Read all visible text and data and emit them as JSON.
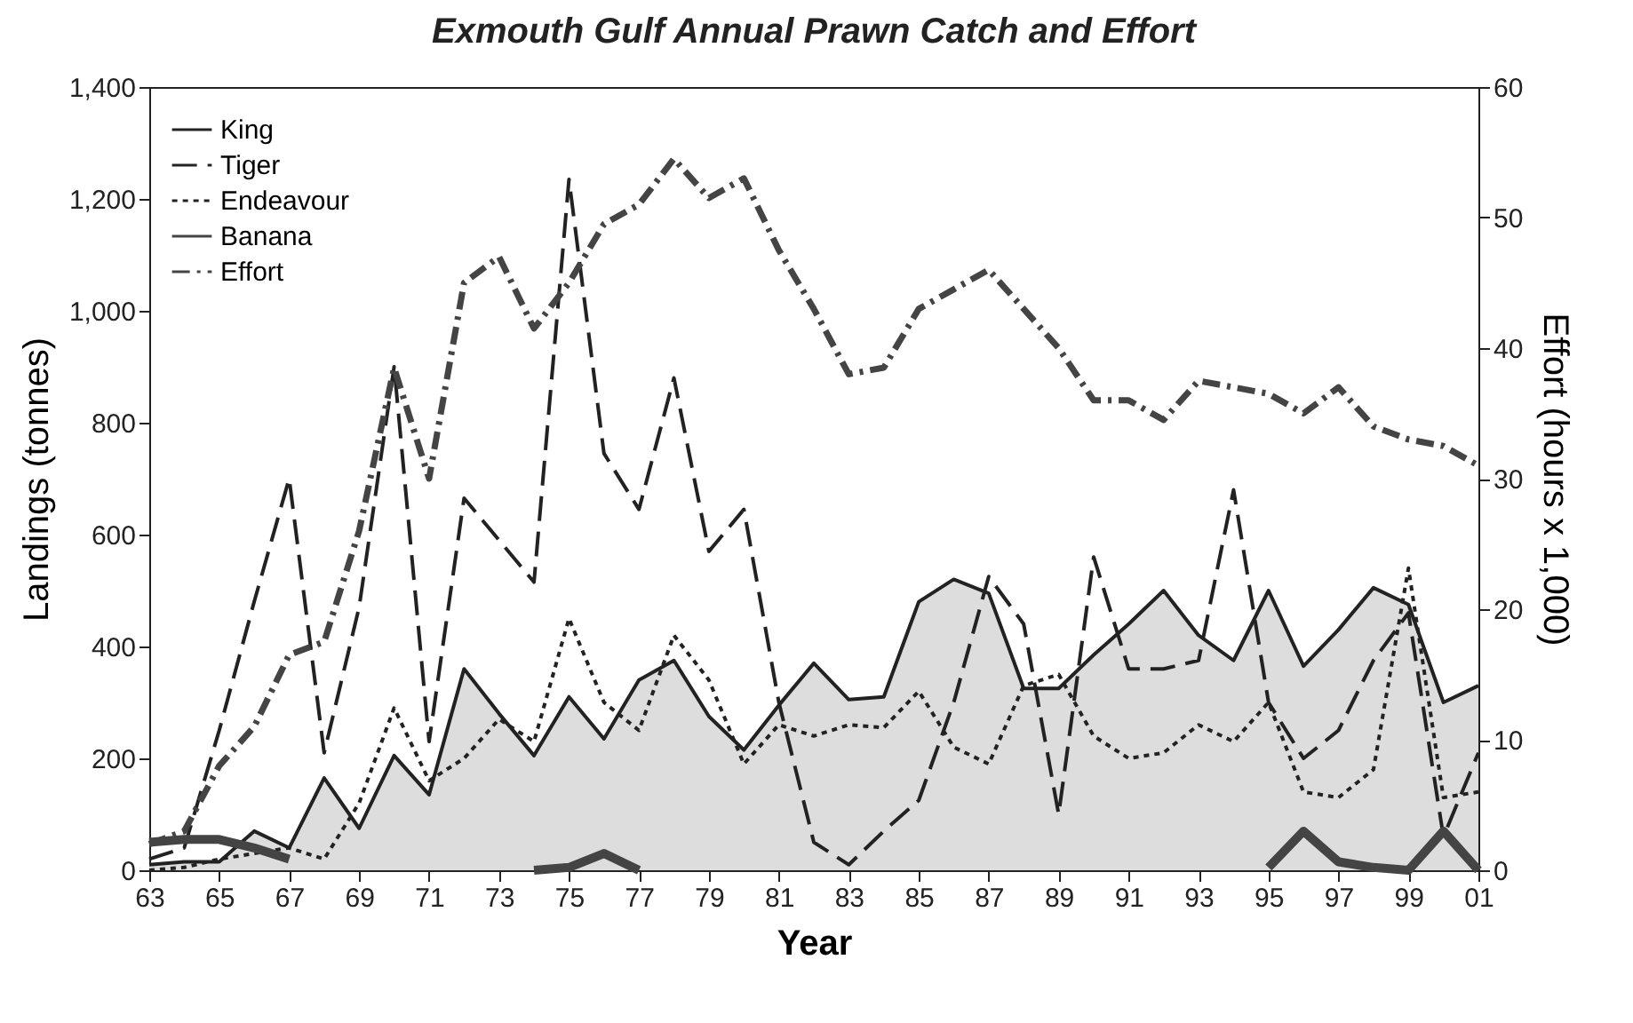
{
  "chart_data": {
    "type": "line",
    "title": "Exmouth Gulf Annual Prawn Catch and Effort",
    "xlabel": "Year",
    "ylabel": "Landings (tonnes)",
    "y2label": "Effort (hours x 1,000)",
    "x": [
      1963,
      1964,
      1965,
      1966,
      1967,
      1968,
      1969,
      1970,
      1971,
      1972,
      1973,
      1974,
      1975,
      1976,
      1977,
      1978,
      1979,
      1980,
      1981,
      1982,
      1983,
      1984,
      1985,
      1986,
      1987,
      1988,
      1989,
      1990,
      1991,
      1992,
      1993,
      1994,
      1995,
      1996,
      1997,
      1998,
      1999,
      2000,
      2001
    ],
    "series": [
      {
        "name": "King",
        "type": "area",
        "color": "#dddddd",
        "line_style": "solid",
        "values": [
          10,
          15,
          15,
          70,
          40,
          165,
          75,
          205,
          135,
          360,
          280,
          205,
          310,
          235,
          340,
          375,
          275,
          215,
          295,
          370,
          305,
          310,
          480,
          520,
          495,
          325,
          325,
          385,
          440,
          500,
          420,
          375,
          500,
          365,
          430,
          505,
          475,
          300,
          330
        ]
      },
      {
        "name": "Tiger",
        "color": "#222222",
        "line_style": "dashed",
        "values": [
          20,
          40,
          250,
          480,
          700,
          210,
          470,
          900,
          230,
          665,
          590,
          515,
          1235,
          745,
          645,
          880,
          570,
          645,
          300,
          50,
          10,
          70,
          125,
          300,
          525,
          440,
          100,
          560,
          360,
          360,
          375,
          680,
          300,
          200,
          250,
          375,
          460,
          60,
          210
        ]
      },
      {
        "name": "Endeavour",
        "color": "#222222",
        "line_style": "dotted",
        "values": [
          0,
          5,
          20,
          30,
          40,
          20,
          120,
          290,
          160,
          200,
          270,
          230,
          450,
          300,
          250,
          420,
          340,
          190,
          260,
          240,
          260,
          255,
          320,
          220,
          190,
          330,
          350,
          240,
          200,
          210,
          260,
          230,
          300,
          140,
          130,
          180,
          540,
          130,
          140
        ]
      },
      {
        "name": "Banana",
        "color": "#444444",
        "line_style": "solid",
        "values": [
          50,
          55,
          55,
          40,
          20,
          null,
          null,
          null,
          null,
          null,
          null,
          0,
          5,
          30,
          0,
          null,
          null,
          null,
          null,
          null,
          null,
          null,
          null,
          null,
          null,
          null,
          null,
          null,
          null,
          null,
          null,
          null,
          5,
          70,
          15,
          5,
          0,
          70,
          0
        ]
      },
      {
        "name": "Effort",
        "color": "#444444",
        "line_style": "dashdot",
        "axis": "y2",
        "values": [
          2,
          3,
          8,
          11,
          16.5,
          17.5,
          26,
          38.5,
          30,
          45,
          47,
          41.5,
          45,
          49.5,
          51,
          54.5,
          51.5,
          53,
          47.5,
          43,
          38,
          38.5,
          43,
          44.5,
          46,
          43,
          40,
          36,
          36,
          34.5,
          37.5,
          37,
          36.5,
          35,
          37,
          34,
          33,
          32.5,
          31
        ]
      }
    ],
    "xlim": [
      1963,
      2001
    ],
    "xticks": [
      {
        "value": 1963,
        "label": "63"
      },
      {
        "value": 1965,
        "label": "65"
      },
      {
        "value": 1967,
        "label": "67"
      },
      {
        "value": 1969,
        "label": "69"
      },
      {
        "value": 1971,
        "label": "71"
      },
      {
        "value": 1973,
        "label": "73"
      },
      {
        "value": 1975,
        "label": "75"
      },
      {
        "value": 1977,
        "label": "77"
      },
      {
        "value": 1979,
        "label": "79"
      },
      {
        "value": 1981,
        "label": "81"
      },
      {
        "value": 1983,
        "label": "83"
      },
      {
        "value": 1985,
        "label": "85"
      },
      {
        "value": 1987,
        "label": "87"
      },
      {
        "value": 1989,
        "label": "89"
      },
      {
        "value": 1991,
        "label": "91"
      },
      {
        "value": 1993,
        "label": "93"
      },
      {
        "value": 1995,
        "label": "95"
      },
      {
        "value": 1997,
        "label": "97"
      },
      {
        "value": 1999,
        "label": "99"
      },
      {
        "value": 2001,
        "label": "01"
      }
    ],
    "ylim": [
      0,
      1400
    ],
    "yticks": [
      0,
      200,
      400,
      600,
      800,
      {
        "value": 1000,
        "label": "1,000"
      },
      {
        "value": 1200,
        "label": "1,200"
      },
      {
        "value": 1400,
        "label": "1,400"
      }
    ],
    "y2lim": [
      0,
      60
    ],
    "y2ticks": [
      0,
      10,
      20,
      30,
      40,
      50,
      60
    ],
    "legend": "top left",
    "grid": false
  }
}
